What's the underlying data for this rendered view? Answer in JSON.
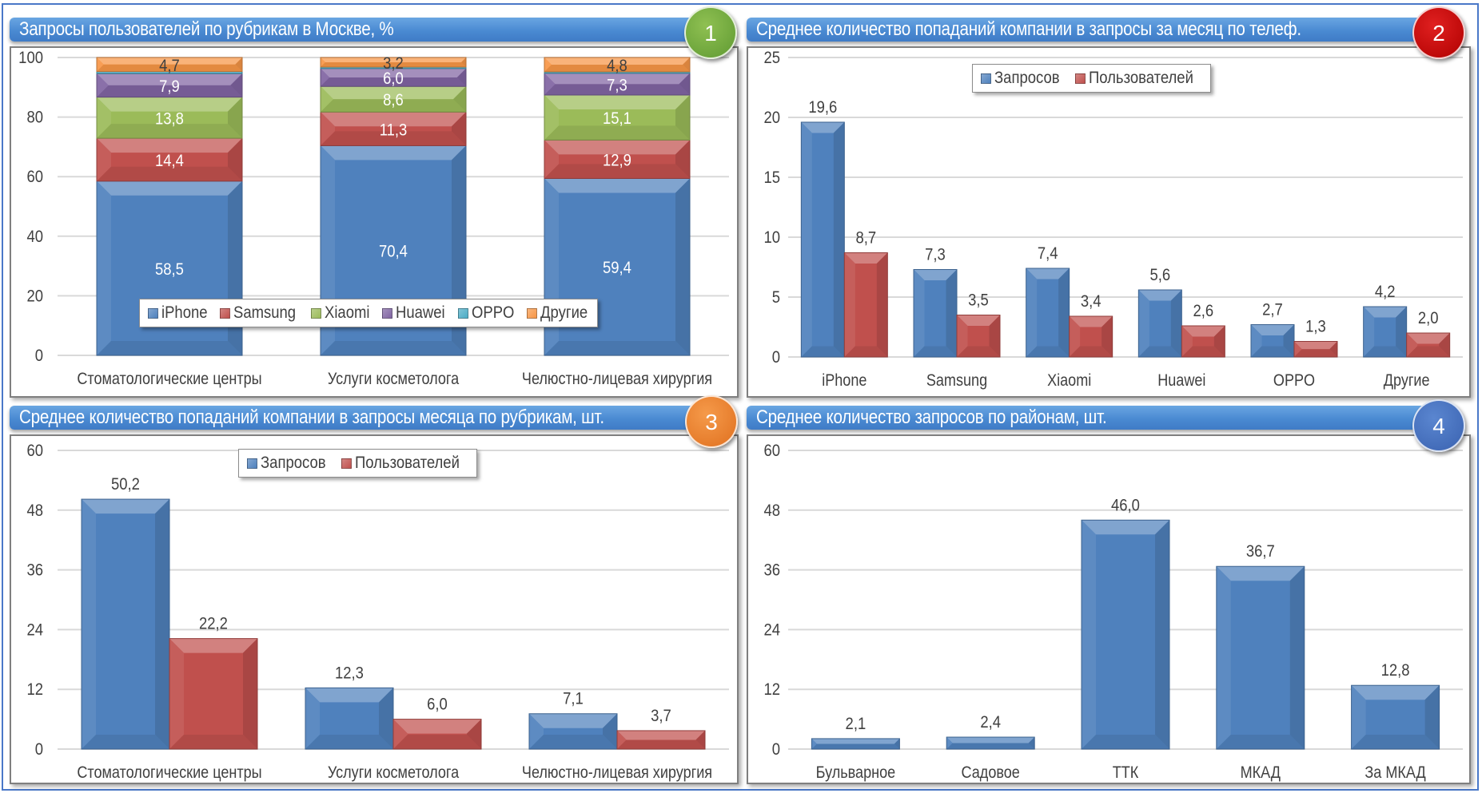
{
  "colors": {
    "blue": "#4f81bd",
    "red": "#c0504d",
    "green": "#9bbb59",
    "purple": "#8064a2",
    "teal": "#4bacc6",
    "orange": "#f79646",
    "frame": "#4a78c8"
  },
  "panels": [
    {
      "badge": "1",
      "title": "Запросы пользователей по рубрикам  в Москве, %"
    },
    {
      "badge": "2",
      "title": "Среднее количество попаданий компании в запросы за месяц по телеф."
    },
    {
      "badge": "3",
      "title": "Среднее количество попаданий компании в запросы месяца по рубрикам, шт."
    },
    {
      "badge": "4",
      "title": "Среднее количество запросов по районам, шт."
    }
  ],
  "chart_data": [
    {
      "type": "bar",
      "stacked": true,
      "title": "Запросы пользователей по рубрикам  в Москве, %",
      "categories": [
        "Стоматологические  центры",
        "Услуги косметолога",
        "Челюстно-лицевая хирургия"
      ],
      "series": [
        {
          "name": "iPhone",
          "color": "#4f81bd",
          "values": [
            58.5,
            70.4,
            59.4
          ],
          "labels": [
            "58,5",
            "70,4",
            "59,4"
          ]
        },
        {
          "name": "Samsung",
          "color": "#c0504d",
          "values": [
            14.4,
            11.3,
            12.9
          ],
          "labels": [
            "14,4",
            "11,3",
            "12,9"
          ]
        },
        {
          "name": "Xiaomi",
          "color": "#9bbb59",
          "values": [
            13.8,
            8.6,
            15.1
          ],
          "labels": [
            "13,8",
            "8,6",
            "15,1"
          ]
        },
        {
          "name": "Huawei",
          "color": "#8064a2",
          "values": [
            7.9,
            6.0,
            7.3
          ],
          "labels": [
            "7,9",
            "6,0",
            "7,3"
          ]
        },
        {
          "name": "OPPO",
          "color": "#4bacc6",
          "values": [
            0.7,
            0.5,
            0.5
          ],
          "labels": [
            "",
            "",
            ""
          ]
        },
        {
          "name": "Другие",
          "color": "#f79646",
          "values": [
            4.7,
            3.2,
            4.8
          ],
          "labels": [
            "4,7",
            "3,2",
            "4,8"
          ]
        }
      ],
      "ylim": [
        0,
        100
      ],
      "yticks": [
        "0",
        "20",
        "40",
        "60",
        "80",
        "100"
      ],
      "ytick_values": [
        0,
        20,
        40,
        60,
        80,
        100
      ],
      "grid": true,
      "legend_position": "bottom-center"
    },
    {
      "type": "bar",
      "title": "Среднее количество попаданий компании в запросы за месяц по телеф.",
      "categories": [
        "iPhone",
        "Samsung",
        "Xiaomi",
        "Huawei",
        "OPPO",
        "Другие"
      ],
      "series": [
        {
          "name": "Запросов",
          "color": "#4f81bd",
          "values": [
            19.6,
            7.3,
            7.4,
            5.6,
            2.7,
            4.2
          ],
          "labels": [
            "19,6",
            "7,3",
            "7,4",
            "5,6",
            "2,7",
            "4,2"
          ]
        },
        {
          "name": "Пользователей",
          "color": "#c0504d",
          "values": [
            8.7,
            3.5,
            3.4,
            2.6,
            1.3,
            2.0
          ],
          "labels": [
            "8,7",
            "3,5",
            "3,4",
            "2,6",
            "1,3",
            "2,0"
          ]
        }
      ],
      "ylim": [
        0,
        25
      ],
      "yticks": [
        "0",
        "5",
        "10",
        "15",
        "20",
        "25"
      ],
      "ytick_values": [
        0,
        5,
        10,
        15,
        20,
        25
      ],
      "grid": true,
      "legend_position": "top-center"
    },
    {
      "type": "bar",
      "title": "Среднее количество попаданий компании в запросы месяца по рубрикам, шт.",
      "categories": [
        "Стоматологические  центры",
        "Услуги косметолога",
        "Челюстно-лицевая хирургия"
      ],
      "series": [
        {
          "name": "Запросов",
          "color": "#4f81bd",
          "values": [
            50.2,
            12.3,
            7.1
          ],
          "labels": [
            "50,2",
            "12,3",
            "7,1"
          ]
        },
        {
          "name": "Пользователей",
          "color": "#c0504d",
          "values": [
            22.2,
            6.0,
            3.7
          ],
          "labels": [
            "22,2",
            "6,0",
            "3,7"
          ]
        }
      ],
      "ylim": [
        0,
        60
      ],
      "yticks": [
        "0",
        "12",
        "24",
        "36",
        "48",
        "60"
      ],
      "ytick_values": [
        0,
        12,
        24,
        36,
        48,
        60
      ],
      "grid": true,
      "legend_position": "top-center"
    },
    {
      "type": "bar",
      "title": "Среднее количество запросов по районам, шт.",
      "categories": [
        "Бульварное",
        "Садовое",
        "ТТК",
        "МКАД",
        "За МКАД"
      ],
      "series": [
        {
          "name": "Запросов",
          "color": "#4f81bd",
          "values": [
            2.1,
            2.4,
            46.0,
            36.7,
            12.8
          ],
          "labels": [
            "2,1",
            "2,4",
            "46,0",
            "36,7",
            "12,8"
          ]
        }
      ],
      "ylim": [
        0,
        60
      ],
      "yticks": [
        "0",
        "12",
        "24",
        "36",
        "48",
        "60"
      ],
      "ytick_values": [
        0,
        12,
        24,
        36,
        48,
        60
      ],
      "grid": true,
      "legend_position": "none"
    }
  ]
}
